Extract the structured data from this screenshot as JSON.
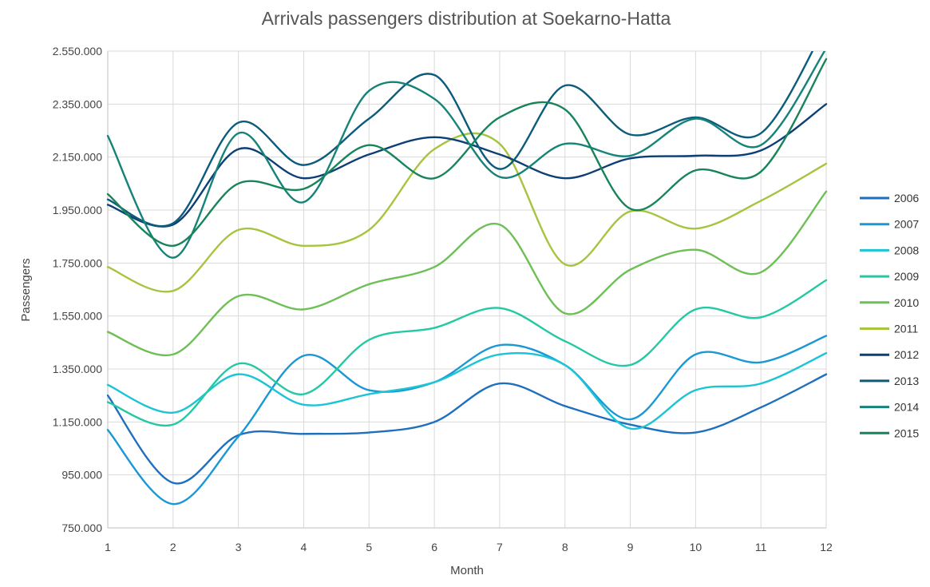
{
  "chart_data": {
    "type": "line",
    "title": "Arrivals passengers distribution at Soekarno-Hatta",
    "xlabel": "Month",
    "ylabel": "Passengers",
    "x": [
      1,
      2,
      3,
      4,
      5,
      6,
      7,
      8,
      9,
      10,
      11,
      12
    ],
    "x_tick_labels": [
      "1",
      "2",
      "3",
      "4",
      "5",
      "6",
      "7",
      "8",
      "9",
      "10",
      "11",
      "12"
    ],
    "ylim": [
      750000,
      2550000
    ],
    "y_ticks": [
      750000,
      950000,
      1150000,
      1350000,
      1550000,
      1750000,
      1950000,
      2150000,
      2350000,
      2550000
    ],
    "y_tick_labels": [
      "750.000",
      "950.000",
      "1.150.000",
      "1.350.000",
      "1.550.000",
      "1.750.000",
      "1.950.000",
      "2.150.000",
      "2.350.000",
      "2.550.000"
    ],
    "grid": true,
    "legend_position": "right",
    "series": [
      {
        "name": "2006",
        "color": "#1f6fbf",
        "values": [
          1250000,
          920000,
          1100000,
          1105000,
          1110000,
          1150000,
          1295000,
          1210000,
          1140000,
          1110000,
          1205000,
          1330000
        ]
      },
      {
        "name": "2007",
        "color": "#1a98d5",
        "values": [
          1120000,
          840000,
          1095000,
          1400000,
          1270000,
          1300000,
          1440000,
          1365000,
          1160000,
          1405000,
          1375000,
          1475000
        ]
      },
      {
        "name": "2008",
        "color": "#1cc4d6",
        "values": [
          1290000,
          1185000,
          1330000,
          1215000,
          1255000,
          1300000,
          1405000,
          1365000,
          1125000,
          1270000,
          1295000,
          1410000
        ]
      },
      {
        "name": "2009",
        "color": "#22c9a2",
        "values": [
          1225000,
          1140000,
          1370000,
          1255000,
          1460000,
          1505000,
          1580000,
          1455000,
          1365000,
          1575000,
          1545000,
          1685000
        ]
      },
      {
        "name": "2010",
        "color": "#6dbf56",
        "values": [
          1490000,
          1405000,
          1625000,
          1575000,
          1670000,
          1735000,
          1895000,
          1560000,
          1725000,
          1800000,
          1715000,
          2020000
        ]
      },
      {
        "name": "2011",
        "color": "#a6c43d",
        "values": [
          1735000,
          1645000,
          1875000,
          1815000,
          1875000,
          2180000,
          2200000,
          1745000,
          1945000,
          1880000,
          1985000,
          2125000
        ]
      },
      {
        "name": "2012",
        "color": "#0d3f77",
        "values": [
          1970000,
          1895000,
          2180000,
          2070000,
          2160000,
          2225000,
          2160000,
          2070000,
          2145000,
          2155000,
          2175000,
          2350000
        ]
      },
      {
        "name": "2013",
        "color": "#0b5c7c",
        "values": [
          1990000,
          1900000,
          2280000,
          2120000,
          2295000,
          2460000,
          2105000,
          2420000,
          2235000,
          2300000,
          2240000,
          2650000
        ]
      },
      {
        "name": "2014",
        "color": "#168378",
        "values": [
          2230000,
          1770000,
          2240000,
          1980000,
          2400000,
          2370000,
          2075000,
          2200000,
          2155000,
          2295000,
          2195000,
          2560000
        ]
      },
      {
        "name": "2015",
        "color": "#17845a",
        "values": [
          2010000,
          1815000,
          2050000,
          2030000,
          2195000,
          2070000,
          2300000,
          2330000,
          1955000,
          2100000,
          2095000,
          2520000
        ]
      }
    ]
  }
}
